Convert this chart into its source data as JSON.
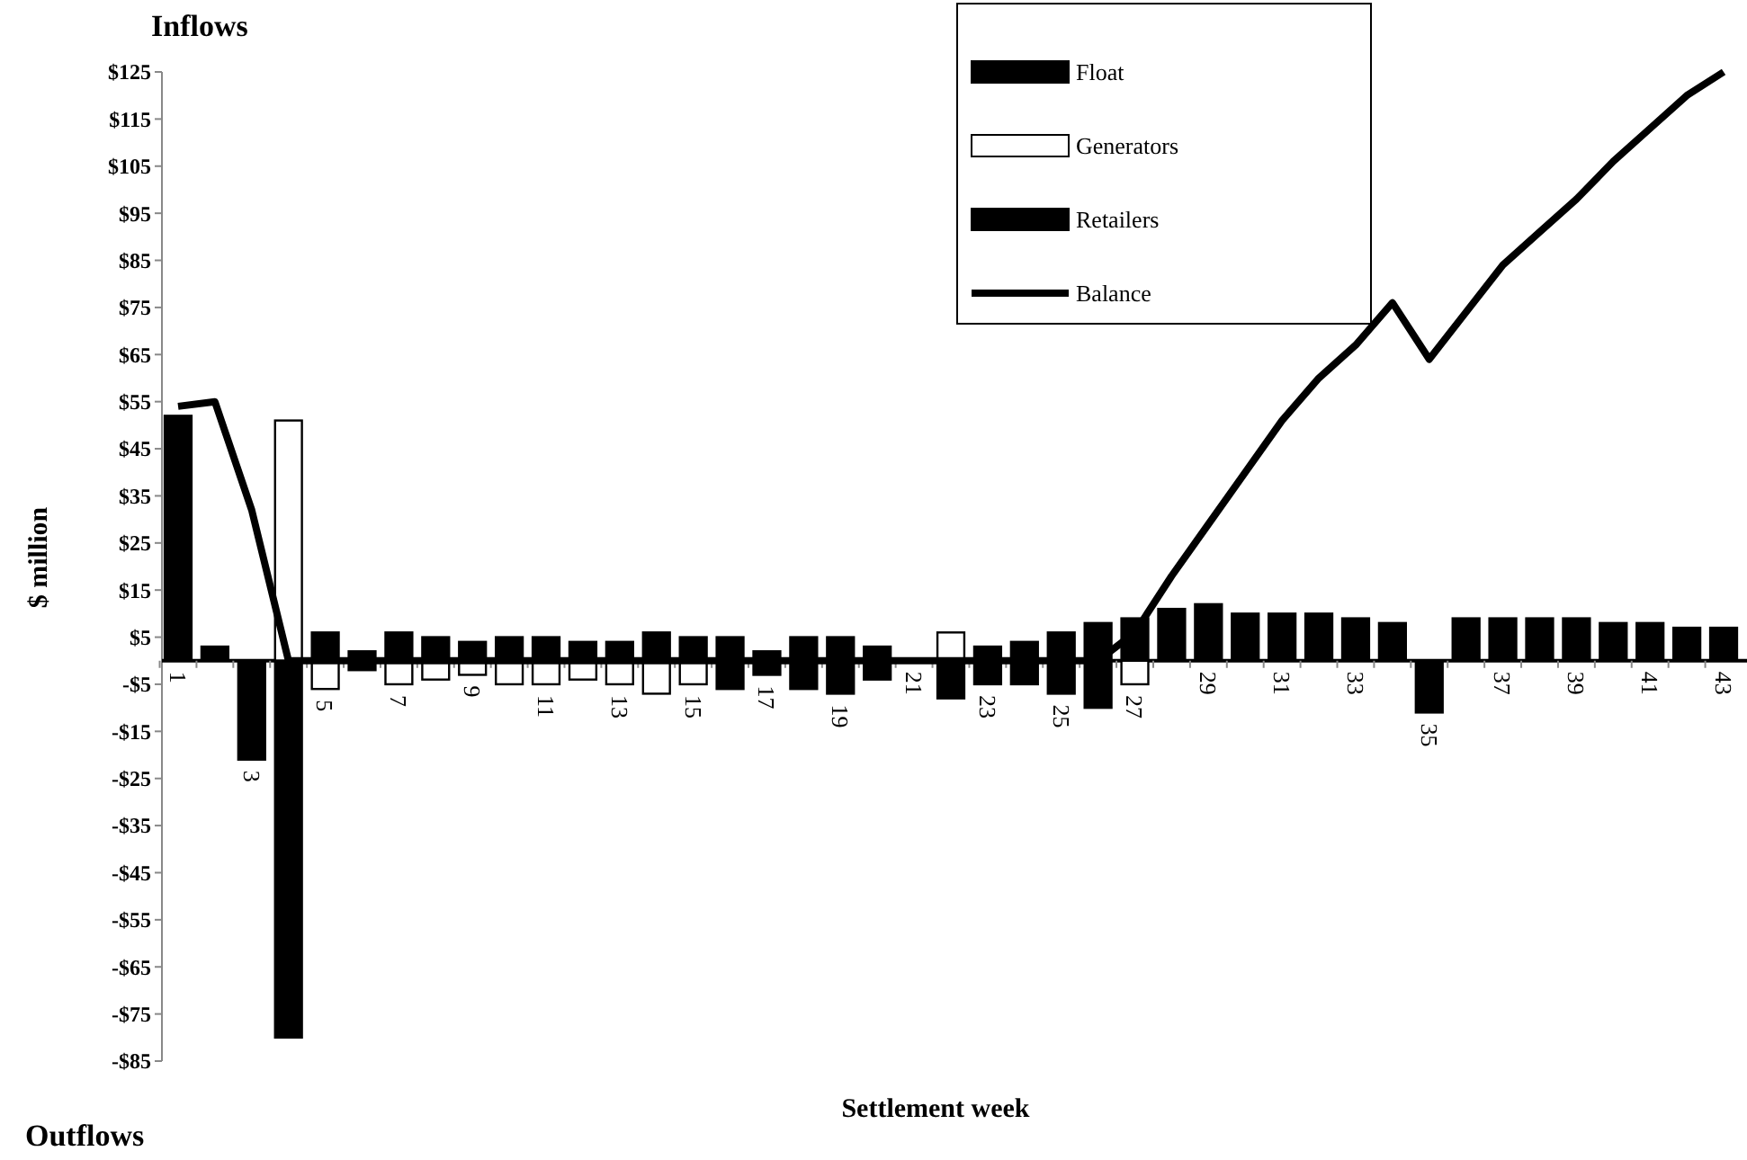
{
  "chart_data": {
    "type": "bar",
    "stacked": true,
    "xlabel": "Settlement week",
    "ylabel": "$ million",
    "annotations": [
      "Inflows",
      "Outflows"
    ],
    "legend": "top right",
    "categories": [
      "1",
      null,
      "3",
      null,
      "5",
      null,
      "7",
      null,
      "9",
      null,
      "11",
      null,
      "13",
      null,
      "15",
      null,
      "17",
      null,
      "19",
      null,
      "21",
      null,
      "23",
      null,
      "25",
      null,
      "27",
      null,
      "29",
      null,
      "31",
      null,
      "33",
      null,
      "35",
      null,
      "37",
      null,
      "39",
      null,
      "41",
      null,
      "43"
    ],
    "ylim": [
      -85,
      125
    ],
    "yticks": [
      {
        "value": -85,
        "label": "-$85"
      },
      {
        "value": -75,
        "label": "-$75"
      },
      {
        "value": -65,
        "label": "-$65"
      },
      {
        "value": -55,
        "label": "-$55"
      },
      {
        "value": -45,
        "label": "-$45"
      },
      {
        "value": -35,
        "label": "-$35"
      },
      {
        "value": -25,
        "label": "-$25"
      },
      {
        "value": -15,
        "label": "-$15"
      },
      {
        "value": -5,
        "label": "-$5"
      },
      {
        "value": 5,
        "label": "$5"
      },
      {
        "value": 15,
        "label": "$15"
      },
      {
        "value": 25,
        "label": "$25"
      },
      {
        "value": 35,
        "label": "$35"
      },
      {
        "value": 45,
        "label": "$45"
      },
      {
        "value": 55,
        "label": "$55"
      },
      {
        "value": 65,
        "label": "$65"
      },
      {
        "value": 75,
        "label": "$75"
      },
      {
        "value": 85,
        "label": "$85"
      },
      {
        "value": 95,
        "label": "$95"
      },
      {
        "value": 105,
        "label": "$105"
      },
      {
        "value": 115,
        "label": "$115"
      },
      {
        "value": 125,
        "label": "$125"
      }
    ],
    "series": [
      {
        "name": "Float",
        "color": "#000000",
        "values": [
          52,
          0,
          0,
          0,
          0,
          -2,
          0,
          0,
          0,
          0,
          0,
          0,
          0,
          0,
          0,
          -6,
          -3,
          -6,
          -7,
          -4,
          0,
          -8,
          -5,
          -5,
          -7,
          -10,
          0,
          0,
          0,
          0,
          0,
          0,
          0,
          0,
          0,
          0,
          0,
          0,
          0,
          0,
          0,
          0,
          0
        ]
      },
      {
        "name": "Generators",
        "color": "#ffffff",
        "values": [
          0,
          0,
          0,
          51,
          -6,
          0,
          -5,
          -4,
          -3,
          -5,
          -5,
          -4,
          -5,
          -7,
          -5,
          0,
          0,
          0,
          0,
          0,
          0,
          6,
          0,
          0,
          0,
          0,
          -5,
          0,
          0,
          0,
          0,
          0,
          0,
          0,
          0,
          0,
          0,
          0,
          0,
          0,
          0,
          0,
          0
        ]
      },
      {
        "name": "Retailers",
        "color": "#000000",
        "values": [
          0,
          3,
          -21,
          -80,
          6,
          2,
          6,
          5,
          4,
          5,
          5,
          4,
          4,
          6,
          5,
          5,
          2,
          5,
          5,
          3,
          0,
          0,
          3,
          4,
          6,
          8,
          9,
          11,
          12,
          10,
          10,
          10,
          9,
          8,
          -11,
          9,
          9,
          9,
          9,
          8,
          8,
          7,
          7
        ]
      },
      {
        "name": "Balance",
        "type": "line",
        "color": "#000000",
        "values": [
          54,
          55,
          32,
          0,
          0,
          0,
          0,
          0,
          0,
          0,
          0,
          0,
          0,
          0,
          0,
          0,
          0,
          0,
          0,
          0,
          0,
          0,
          0,
          0,
          0,
          0,
          6,
          18,
          29,
          40,
          51,
          60,
          67,
          76,
          64,
          74,
          84,
          91,
          98,
          106,
          113,
          120,
          125
        ]
      }
    ]
  }
}
